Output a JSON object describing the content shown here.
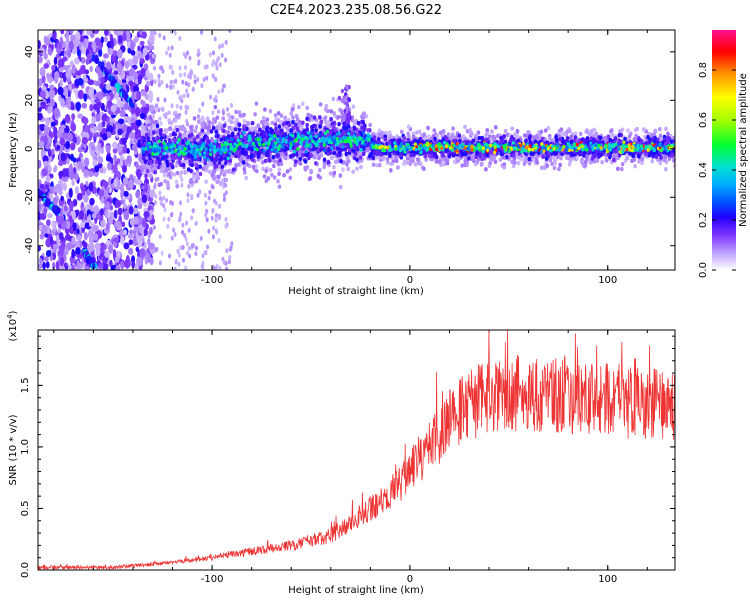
{
  "title": "C2E4.2023.235.08.56.G22",
  "colors": {
    "snr_line": "#ee3333",
    "rainbow": [
      "#ffffff",
      "#d9c2ff",
      "#a070ff",
      "#6000ff",
      "#0000ee",
      "#0080ff",
      "#00e0e0",
      "#00ff40",
      "#c0ff00",
      "#ffff00",
      "#ff8000",
      "#ff0000",
      "#ff1090"
    ]
  },
  "chart_data": [
    {
      "type": "heatmap",
      "title": "C2E4.2023.235.08.56.G22",
      "xlabel": "Height of straight line (km)",
      "ylabel": "Frequency (Hz)",
      "xlim": [
        -188,
        134
      ],
      "ylim": [
        -50,
        49
      ],
      "xticks": [
        -100,
        0,
        100
      ],
      "xticklabels": [
        "-100",
        "0",
        "100"
      ],
      "yticks": [
        -40,
        -20,
        0,
        20,
        40
      ],
      "yticklabels": [
        "-40",
        "-20",
        "0",
        "20",
        "40"
      ],
      "grid": false,
      "colorbar": {
        "label": "Normalized spectral amplitude",
        "range": [
          0.0,
          0.96
        ],
        "ticks": [
          0.0,
          0.2,
          0.4,
          0.6,
          0.8
        ],
        "ticklabels": [
          "0.0",
          "0.2",
          "0.4",
          "0.6",
          "0.8"
        ]
      },
      "features": {
        "noise_region_x": [
          -188,
          -130
        ],
        "signal_band_center_hz": 0,
        "signal_band_start_x": -135,
        "bright_streaks": [
          {
            "x": [
              -160,
              -140
            ],
            "y": [
              38,
              18
            ]
          },
          {
            "x": [
              -188,
              -178
            ],
            "y": [
              -18,
              -26
            ]
          },
          {
            "x": [
              -165,
              -160
            ],
            "y": [
              -42,
              -48
            ]
          }
        ]
      }
    },
    {
      "type": "line",
      "xlabel": "Height of straight line (km)",
      "ylabel": "SNR (10 * v/v)",
      "y_multiplier": "(x10",
      "y_multiplier_exponent": "4",
      "y_multiplier_close": ")",
      "xlim": [
        -188,
        134
      ],
      "ylim": [
        0,
        1.95
      ],
      "xticks": [
        -100,
        0,
        100
      ],
      "xticklabels": [
        "-100",
        "0",
        "100"
      ],
      "yticks": [
        0.0,
        0.5,
        1.0,
        1.5
      ],
      "yticklabels": [
        "0.0",
        "0.5",
        "1.0",
        "1.5"
      ],
      "grid": false,
      "series": [
        {
          "color": "#ee3333",
          "trend": {
            "x": [
              -188,
              -150,
              -120,
              -100,
              -80,
              -60,
              -40,
              -30,
              -20,
              -10,
              0,
              10,
              20,
              30,
              40,
              60,
              80,
              100,
              120,
              134
            ],
            "y": [
              0.02,
              0.02,
              0.06,
              0.1,
              0.15,
              0.2,
              0.28,
              0.38,
              0.5,
              0.62,
              0.8,
              1.0,
              1.2,
              1.35,
              1.4,
              1.45,
              1.4,
              1.38,
              1.35,
              1.33
            ]
          }
        }
      ]
    }
  ]
}
